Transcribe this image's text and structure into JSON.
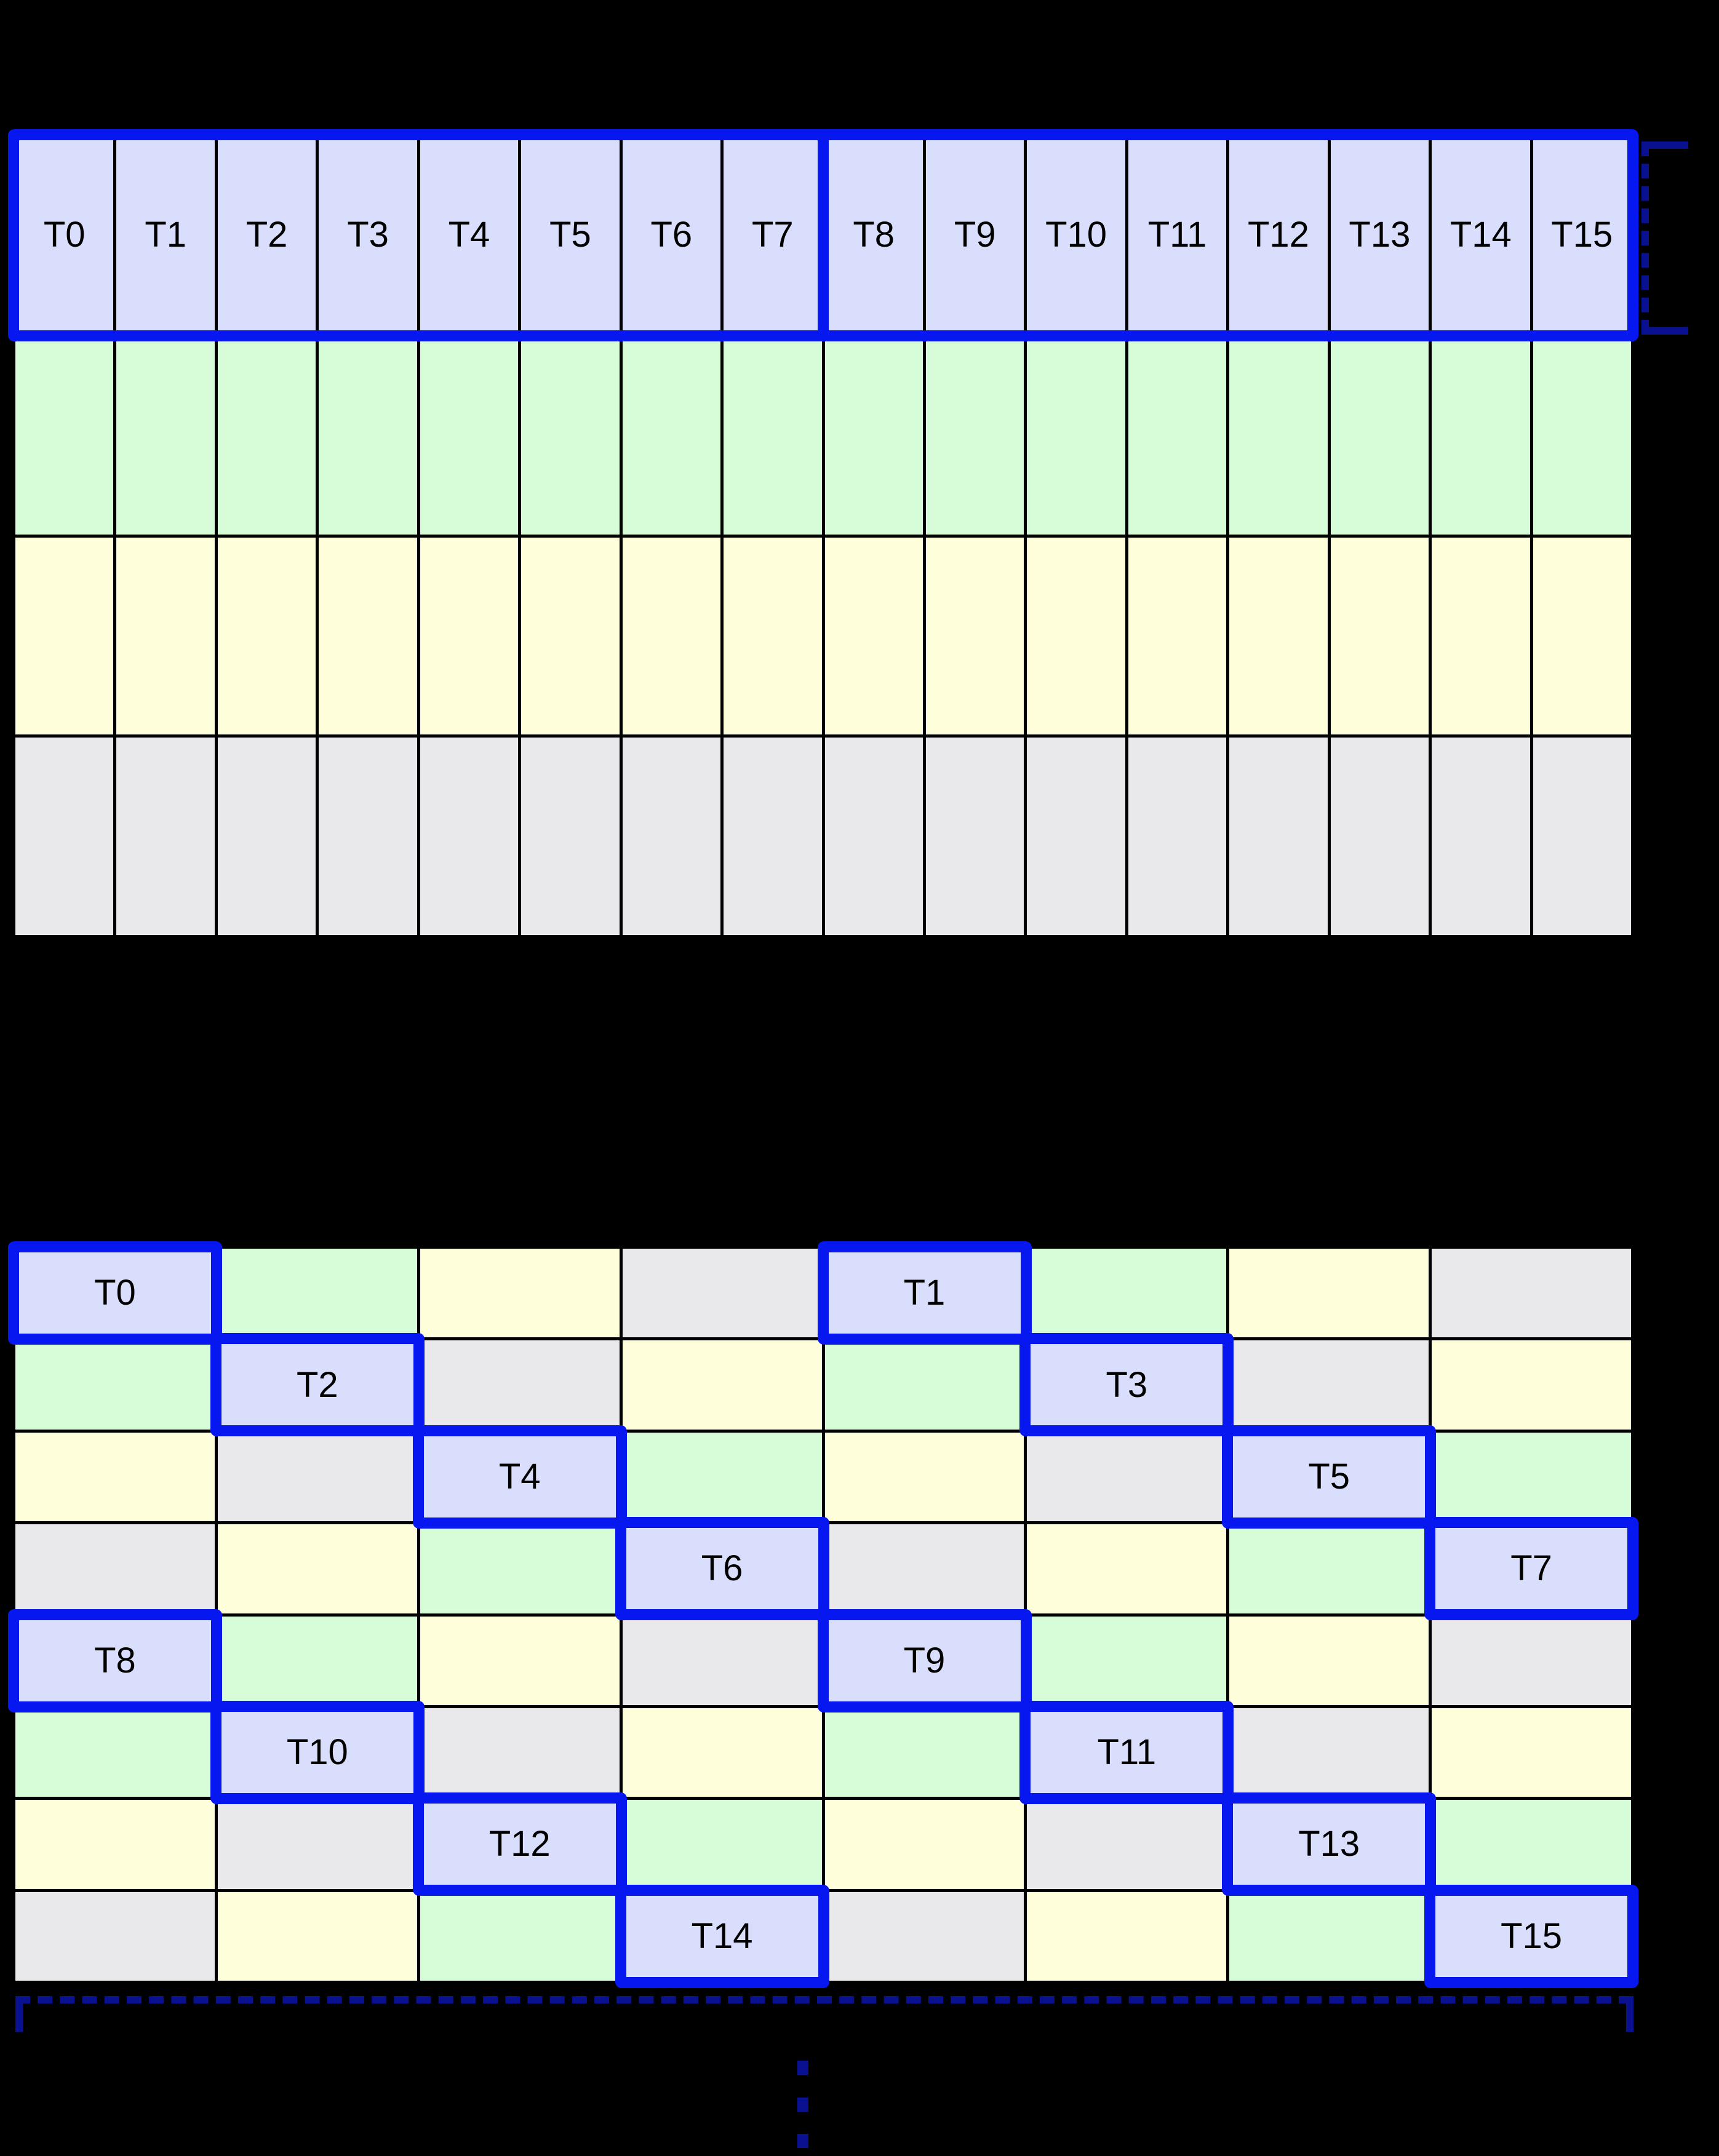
{
  "colors": {
    "background": "#000000",
    "thread_cell_fill": "#d8defb",
    "green_cell_fill": "#d7fdd8",
    "yellow_cell_fill": "#fffeda",
    "gray_cell_fill": "#e9e9ec",
    "cell_border": "#000000",
    "coalesce_outline": "#0617ef",
    "bracket_color": "#0a1190",
    "label_color": "#000000"
  },
  "coalesced_table": {
    "columns": 16,
    "thread_row": [
      "T0",
      "T1",
      "T2",
      "T3",
      "T4",
      "T5",
      "T6",
      "T7",
      "T8",
      "T9",
      "T10",
      "T11",
      "T12",
      "T13",
      "T14",
      "T15"
    ],
    "color_rows": [
      "green",
      "yellow",
      "gray"
    ],
    "outline_groups": [
      {
        "start": 0,
        "end": 7
      },
      {
        "start": 8,
        "end": 15
      }
    ]
  },
  "strided_table": {
    "columns": 8,
    "rows": [
      [
        "T0",
        "green",
        "yellow",
        "gray",
        "T1",
        "green",
        "yellow",
        "gray"
      ],
      [
        "green",
        "T2",
        "gray",
        "yellow",
        "green",
        "T3",
        "gray",
        "yellow"
      ],
      [
        "yellow",
        "gray",
        "T4",
        "green",
        "yellow",
        "gray",
        "T5",
        "green"
      ],
      [
        "gray",
        "yellow",
        "green",
        "T6",
        "gray",
        "yellow",
        "green",
        "T7"
      ],
      [
        "T8",
        "green",
        "yellow",
        "gray",
        "T9",
        "green",
        "yellow",
        "gray"
      ],
      [
        "green",
        "T10",
        "gray",
        "yellow",
        "green",
        "T11",
        "gray",
        "yellow"
      ],
      [
        "yellow",
        "gray",
        "T12",
        "green",
        "yellow",
        "gray",
        "T13",
        "green"
      ],
      [
        "gray",
        "yellow",
        "green",
        "T14",
        "gray",
        "yellow",
        "green",
        "T15"
      ]
    ]
  },
  "annotations": {
    "right_bracket_style": "dashed",
    "bottom_bracket_style": "dashed",
    "ellipsis_dot_count": 3
  }
}
